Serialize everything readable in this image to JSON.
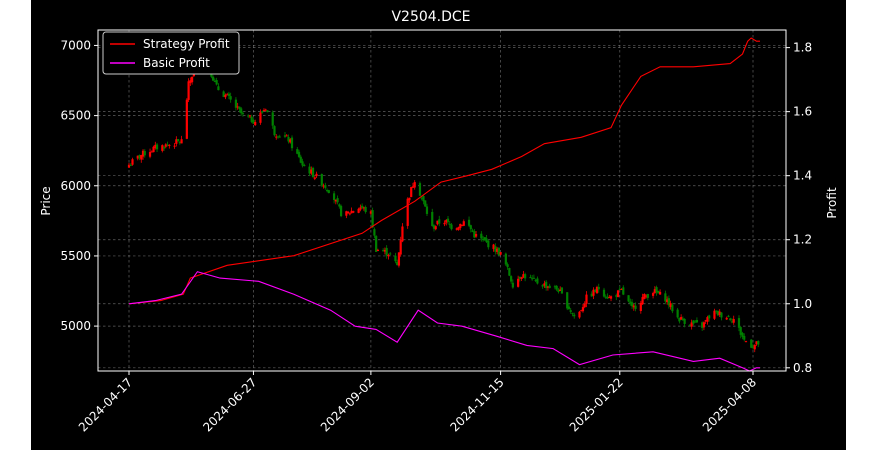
{
  "chart_data": {
    "type": "candlestick",
    "title": "V2504.DCE",
    "xlabel": "",
    "ylabel_left": "Price",
    "ylabel_right": "Profit",
    "ylim_left": [
      4680,
      7110
    ],
    "ylim_right": [
      0.79,
      1.855
    ],
    "grid": true,
    "legend_placement": "top-left",
    "x_tick_labels": [
      "2024-04-17",
      "2024-06-27",
      "2024-09-02",
      "2024-11-15",
      "2025-01-22",
      "2025-04-08"
    ],
    "y_left_ticks": [
      5000,
      5500,
      6000,
      6500,
      7000
    ],
    "y_right_ticks": [
      0.8,
      1.0,
      1.2,
      1.4,
      1.6,
      1.8
    ],
    "price_series": {
      "name": "Price",
      "up_color": "#ff0000",
      "down_color": "#008000",
      "close_path": [
        [
          "2024-04-17",
          6150
        ],
        [
          "2024-04-24",
          6220
        ],
        [
          "2024-05-02",
          6270
        ],
        [
          "2024-05-12",
          6300
        ],
        [
          "2024-05-17",
          6320
        ],
        [
          "2024-05-21",
          6720
        ],
        [
          "2024-05-26",
          6890
        ],
        [
          "2024-06-01",
          6870
        ],
        [
          "2024-06-06",
          6700
        ],
        [
          "2024-06-13",
          6620
        ],
        [
          "2024-06-21",
          6500
        ],
        [
          "2024-06-28",
          6460
        ],
        [
          "2024-07-04",
          6560
        ],
        [
          "2024-07-09",
          6380
        ],
        [
          "2024-07-17",
          6330
        ],
        [
          "2024-07-25",
          6150
        ],
        [
          "2024-08-03",
          6050
        ],
        [
          "2024-08-10",
          5960
        ],
        [
          "2024-08-17",
          5780
        ],
        [
          "2024-08-22",
          5820
        ],
        [
          "2024-08-27",
          5850
        ],
        [
          "2024-09-02",
          5800
        ],
        [
          "2024-09-05",
          5550
        ],
        [
          "2024-09-12",
          5520
        ],
        [
          "2024-09-17",
          5430
        ],
        [
          "2024-09-21",
          5820
        ],
        [
          "2024-09-27",
          6050
        ],
        [
          "2024-10-02",
          5880
        ],
        [
          "2024-10-07",
          5700
        ],
        [
          "2024-10-13",
          5760
        ],
        [
          "2024-10-19",
          5700
        ],
        [
          "2024-10-26",
          5750
        ],
        [
          "2024-10-31",
          5650
        ],
        [
          "2024-11-06",
          5600
        ],
        [
          "2024-11-11",
          5560
        ],
        [
          "2024-11-16",
          5500
        ],
        [
          "2024-11-22",
          5300
        ],
        [
          "2024-11-27",
          5370
        ],
        [
          "2024-12-04",
          5320
        ],
        [
          "2024-12-11",
          5290
        ],
        [
          "2024-12-18",
          5260
        ],
        [
          "2024-12-23",
          5150
        ],
        [
          "2024-12-28",
          5050
        ],
        [
          "2025-01-03",
          5200
        ],
        [
          "2025-01-10",
          5270
        ],
        [
          "2025-01-16",
          5200
        ],
        [
          "2025-01-23",
          5250
        ],
        [
          "2025-01-29",
          5120
        ],
        [
          "2025-02-04",
          5200
        ],
        [
          "2025-02-10",
          5250
        ],
        [
          "2025-02-17",
          5200
        ],
        [
          "2025-02-24",
          5060
        ],
        [
          "2025-03-03",
          5020
        ],
        [
          "2025-03-10",
          5000
        ],
        [
          "2025-03-16",
          5100
        ],
        [
          "2025-03-22",
          5080
        ],
        [
          "2025-03-28",
          5050
        ],
        [
          "2025-04-03",
          4900
        ],
        [
          "2025-04-08",
          4860
        ],
        [
          "2025-04-12",
          4880
        ]
      ]
    },
    "series": [
      {
        "name": "Strategy Profit",
        "color": "#ff0000",
        "points": [
          [
            "2024-04-17",
            1.0
          ],
          [
            "2024-05-05",
            1.01
          ],
          [
            "2024-05-18",
            1.03
          ],
          [
            "2024-05-22",
            1.08
          ],
          [
            "2024-06-12",
            1.12
          ],
          [
            "2024-07-20",
            1.15
          ],
          [
            "2024-08-28",
            1.22
          ],
          [
            "2024-09-08",
            1.26
          ],
          [
            "2024-09-27",
            1.32
          ],
          [
            "2024-10-12",
            1.38
          ],
          [
            "2024-10-27",
            1.4
          ],
          [
            "2024-11-10",
            1.42
          ],
          [
            "2024-11-27",
            1.46
          ],
          [
            "2024-12-10",
            1.5
          ],
          [
            "2024-12-31",
            1.52
          ],
          [
            "2025-01-17",
            1.55
          ],
          [
            "2025-01-23",
            1.62
          ],
          [
            "2025-02-03",
            1.71
          ],
          [
            "2025-02-14",
            1.74
          ],
          [
            "2025-03-05",
            1.74
          ],
          [
            "2025-03-26",
            1.75
          ],
          [
            "2025-04-02",
            1.78
          ],
          [
            "2025-04-05",
            1.82
          ],
          [
            "2025-04-07",
            1.83
          ],
          [
            "2025-04-10",
            1.82
          ],
          [
            "2025-04-12",
            1.82
          ]
        ]
      },
      {
        "name": "Basic Profit",
        "color": "#ff00ff",
        "points": [
          [
            "2024-04-17",
            1.0
          ],
          [
            "2024-05-02",
            1.01
          ],
          [
            "2024-05-17",
            1.03
          ],
          [
            "2024-05-26",
            1.1
          ],
          [
            "2024-06-08",
            1.08
          ],
          [
            "2024-06-30",
            1.07
          ],
          [
            "2024-07-20",
            1.03
          ],
          [
            "2024-08-10",
            0.98
          ],
          [
            "2024-08-24",
            0.93
          ],
          [
            "2024-09-05",
            0.92
          ],
          [
            "2024-09-17",
            0.88
          ],
          [
            "2024-09-29",
            0.98
          ],
          [
            "2024-10-10",
            0.94
          ],
          [
            "2024-10-24",
            0.93
          ],
          [
            "2024-11-12",
            0.9
          ],
          [
            "2024-11-30",
            0.87
          ],
          [
            "2024-12-15",
            0.86
          ],
          [
            "2024-12-30",
            0.81
          ],
          [
            "2025-01-18",
            0.84
          ],
          [
            "2025-02-10",
            0.85
          ],
          [
            "2025-03-05",
            0.82
          ],
          [
            "2025-03-20",
            0.83
          ],
          [
            "2025-04-02",
            0.8
          ],
          [
            "2025-04-06",
            0.79
          ],
          [
            "2025-04-10",
            0.8
          ],
          [
            "2025-04-12",
            0.8
          ]
        ]
      }
    ]
  }
}
